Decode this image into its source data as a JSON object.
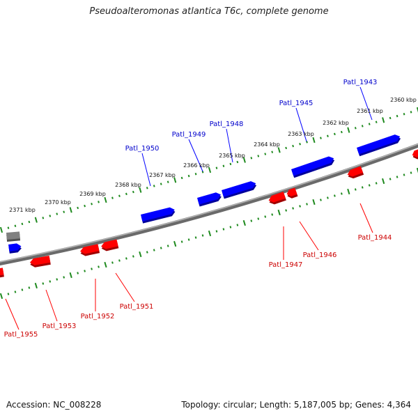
{
  "title": "Pseudoalteromonas atlantica T6c, complete genome",
  "footer": {
    "accession": "Accession: NC_008228",
    "summary": "Topology: circular; Length: 5,187,005 bp; Genes: 4,364"
  },
  "colors": {
    "forward_gene": "#0000ff",
    "reverse_gene": "#ff0000",
    "other_feature": "#808080",
    "backbone": "#7a7a7a",
    "tick": "#1f8a1f",
    "forward_label": "#0000cc",
    "reverse_label": "#cc0000"
  },
  "scale_labels": [
    "2360 kbp",
    "2361 kbp",
    "2362 kbp",
    "2363 kbp",
    "2364 kbp",
    "2365 kbp",
    "2366 kbp",
    "2367 kbp",
    "2368 kbp",
    "2369 kbp",
    "2370 kbp",
    "2371 kbp"
  ],
  "forward_genes": [
    "Patl_1943",
    "Patl_1945",
    "Patl_1948",
    "Patl_1949",
    "Patl_1950"
  ],
  "reverse_genes": [
    "Patl_1944",
    "Patl_1946",
    "Patl_1947",
    "Patl_1951",
    "Patl_1952",
    "Patl_1953",
    "Patl_1955"
  ]
}
